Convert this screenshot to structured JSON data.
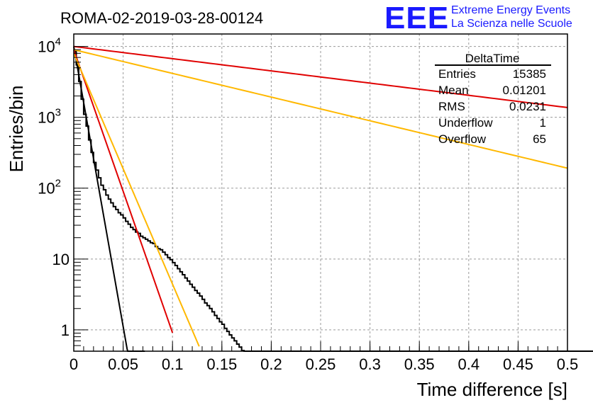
{
  "header": {
    "run_title": "ROMA-02-2019-03-28-00124",
    "logo_mark": "EEE",
    "logo_line1": "Extreme Energy Events",
    "logo_line2": "La Scienza nelle Scuole"
  },
  "stats": {
    "title": "DeltaTime",
    "rows": [
      {
        "label": "Entries",
        "value": "15385"
      },
      {
        "label": "Mean",
        "value": "0.01201"
      },
      {
        "label": "RMS",
        "value": "0.0231"
      },
      {
        "label": "Underflow",
        "value": "1"
      },
      {
        "label": "Overflow",
        "value": "65"
      }
    ]
  },
  "colors": {
    "histogram": "#000000",
    "fit_red": "#e00000",
    "fit_orange": "#ffb800",
    "grid": "#9a9a9a",
    "logo": "#1a1aff"
  },
  "chart_data": {
    "type": "line",
    "title": "ROMA-02-2019-03-28-00124",
    "xlabel": "Time difference [s]",
    "ylabel": "Entries/bin",
    "xlim": [
      0,
      0.5
    ],
    "ylim": [
      0.5,
      15000
    ],
    "yscale": "log",
    "grid": true,
    "x_ticks": [
      {
        "value": 0,
        "label": "0"
      },
      {
        "value": 0.05,
        "label": "0.05"
      },
      {
        "value": 0.1,
        "label": "0.1"
      },
      {
        "value": 0.15,
        "label": "0.15"
      },
      {
        "value": 0.2,
        "label": "0.2"
      },
      {
        "value": 0.25,
        "label": "0.25"
      },
      {
        "value": 0.3,
        "label": "0.3"
      },
      {
        "value": 0.35,
        "label": "0.35"
      },
      {
        "value": 0.4,
        "label": "0.4"
      },
      {
        "value": 0.45,
        "label": "0.45"
      },
      {
        "value": 0.5,
        "label": "0.5"
      }
    ],
    "y_ticks": [
      {
        "value": 1,
        "base": "1",
        "exp": ""
      },
      {
        "value": 10,
        "base": "10",
        "exp": ""
      },
      {
        "value": 100,
        "base": "10",
        "exp": "2"
      },
      {
        "value": 1000,
        "base": "10",
        "exp": "3"
      },
      {
        "value": 10000,
        "base": "10",
        "exp": "4"
      }
    ],
    "histogram": {
      "name": "DeltaTime",
      "bin_width": 0.0025,
      "values": [
        8500,
        5500,
        3200,
        1800,
        1100,
        750,
        480,
        320,
        230,
        180,
        140,
        110,
        95,
        80,
        70,
        62,
        55,
        50,
        45,
        42,
        38,
        34,
        31,
        28,
        26,
        24,
        23,
        21,
        20,
        19,
        18,
        17,
        16.5,
        15,
        14,
        13.5,
        12.5,
        11.5,
        10.5,
        9.8,
        8.9,
        8.1,
        7.3,
        6.6,
        6,
        5.4,
        4.9,
        4.4,
        4,
        3.6,
        3.3,
        3,
        2.7,
        2.4,
        2.2,
        2,
        1.8,
        1.6,
        1.45,
        1.3,
        1.2,
        1.05,
        0.95,
        0.85,
        0.77,
        0.7,
        0.63,
        0.57,
        0.51,
        0.46,
        0,
        0,
        0,
        0,
        0,
        0,
        0,
        0,
        0,
        0,
        0,
        0,
        0,
        0,
        0,
        0,
        0,
        0,
        0,
        0,
        0,
        0,
        0,
        0,
        0,
        0,
        0,
        0,
        0,
        0,
        0,
        0,
        0,
        0,
        0,
        0,
        0,
        0,
        0,
        0,
        0,
        0,
        0,
        0,
        0,
        0,
        0,
        0,
        0,
        0,
        0,
        0,
        0,
        0,
        0,
        0,
        0,
        0,
        0,
        0,
        0,
        0,
        0,
        0,
        0,
        0,
        0,
        0,
        0,
        0,
        0,
        0,
        0,
        0,
        0,
        0,
        0,
        0,
        0,
        0,
        0,
        0,
        0,
        0,
        0,
        0,
        0,
        0,
        0,
        0,
        0,
        0,
        0,
        0,
        0,
        0,
        0,
        0,
        0,
        0,
        0,
        0,
        0,
        0,
        0,
        0,
        0,
        0,
        0,
        0,
        0,
        0,
        0,
        0,
        0,
        0,
        0,
        0,
        0,
        0,
        0,
        0,
        0,
        0,
        0,
        0,
        0,
        0,
        0,
        0,
        0,
        0,
        0,
        0,
        0,
        0,
        0,
        0,
        0,
        0,
        0,
        0
      ]
    },
    "series": [
      {
        "color": "#000000",
        "kind": "exp",
        "amplitude": 10000,
        "slope_per_s": 182,
        "x_end": 0.072
      },
      {
        "color": "#e00000",
        "kind": "exp",
        "amplitude": 9000,
        "slope_per_s": 92,
        "x_end": 0.1
      },
      {
        "color": "#ffb800",
        "kind": "exp",
        "amplitude": 8000,
        "slope_per_s": 75,
        "x_end": 0.127
      },
      {
        "color": "#e00000",
        "kind": "exp",
        "amplitude": 10000,
        "slope_per_s": 3.97,
        "x_end": 0.5
      },
      {
        "color": "#ffb800",
        "kind": "exp",
        "amplitude": 9000,
        "slope_per_s": 7.7,
        "x_end": 0.5
      }
    ]
  }
}
